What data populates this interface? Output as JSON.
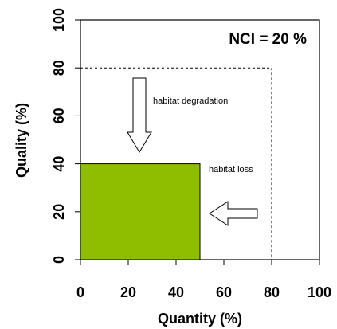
{
  "chart_data": {
    "type": "area",
    "title": "",
    "xlabel": "Quantity (%)",
    "ylabel": "Quality (%)",
    "xlim": [
      0,
      100
    ],
    "ylim": [
      0,
      100
    ],
    "x_ticks": [
      "0",
      "20",
      "40",
      "60",
      "80",
      "100"
    ],
    "y_ticks": [
      "0",
      "20",
      "40",
      "60",
      "80",
      "100"
    ],
    "grid": false,
    "reference_region": {
      "quantity": 80,
      "quality": 80,
      "style": "dashed"
    },
    "current_region": {
      "quantity": 50,
      "quality": 40,
      "fill": "#8fbe00"
    },
    "annotations": {
      "nci": "NCI = 20 %",
      "degradation": "habitat degradation",
      "loss": "habitat loss"
    }
  }
}
